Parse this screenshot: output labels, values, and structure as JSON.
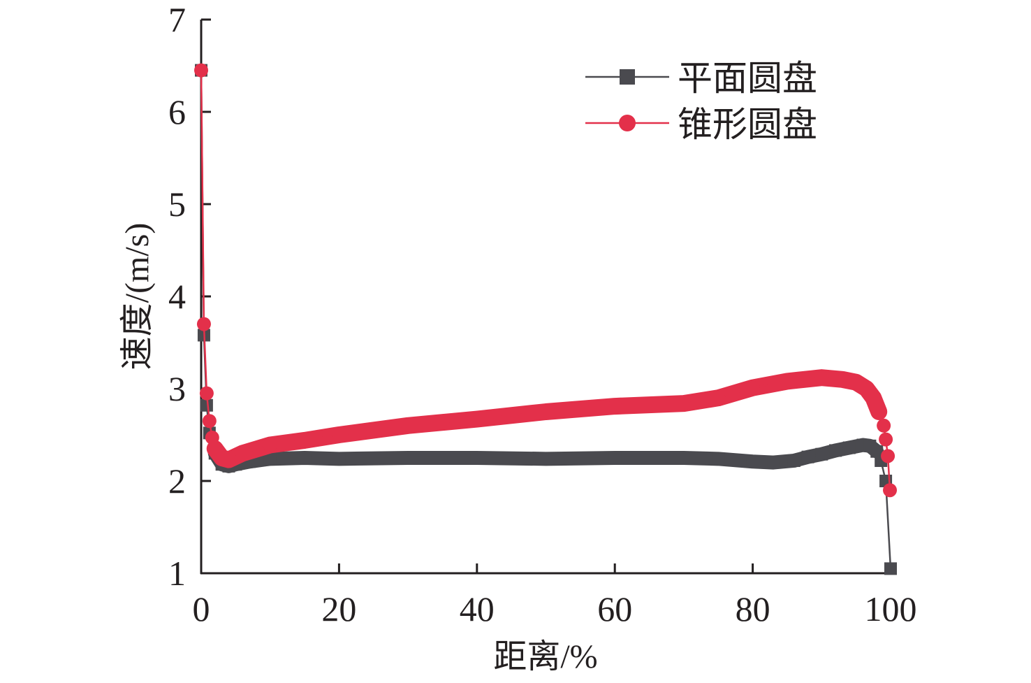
{
  "chart_data": {
    "type": "line",
    "xlabel": "距离/%",
    "ylabel": "速度/(m/s)",
    "xlim": [
      0,
      100
    ],
    "ylim": [
      1,
      7
    ],
    "xticks": [
      "0",
      "20",
      "40",
      "60",
      "80",
      "100"
    ],
    "yticks": [
      "1",
      "2",
      "3",
      "4",
      "5",
      "6",
      "7"
    ],
    "grid": false,
    "legend_position": "top-right",
    "series": [
      {
        "name": "平面圆盘",
        "color": "#4a4a4f",
        "marker": "square",
        "x": [
          0,
          0.4,
          0.8,
          1.2,
          2,
          3,
          4,
          5,
          7,
          10,
          15,
          20,
          30,
          40,
          50,
          60,
          70,
          75,
          80,
          83,
          86,
          88,
          90,
          92,
          94,
          96,
          97,
          98,
          98.6,
          99.3,
          100
        ],
        "y": [
          6.45,
          3.58,
          2.82,
          2.52,
          2.3,
          2.18,
          2.16,
          2.18,
          2.21,
          2.24,
          2.25,
          2.24,
          2.25,
          2.25,
          2.24,
          2.25,
          2.25,
          2.24,
          2.21,
          2.2,
          2.22,
          2.26,
          2.29,
          2.33,
          2.36,
          2.39,
          2.38,
          2.32,
          2.22,
          2.0,
          1.05
        ]
      },
      {
        "name": "锥形圆盘",
        "color": "#e3304a",
        "marker": "circle",
        "x": [
          0,
          0.4,
          0.8,
          1.2,
          1.6,
          2,
          3,
          4,
          6,
          10,
          15,
          20,
          30,
          40,
          50,
          60,
          70,
          75,
          80,
          85,
          90,
          93,
          95,
          96.5,
          97.5,
          98.3,
          99,
          99.3,
          99.6,
          99.9
        ],
        "y": [
          6.45,
          3.7,
          2.95,
          2.65,
          2.47,
          2.35,
          2.25,
          2.23,
          2.3,
          2.39,
          2.44,
          2.5,
          2.6,
          2.67,
          2.75,
          2.81,
          2.84,
          2.9,
          3.01,
          3.08,
          3.12,
          3.1,
          3.07,
          3.0,
          2.9,
          2.75,
          2.6,
          2.45,
          2.27,
          1.9
        ]
      }
    ]
  }
}
